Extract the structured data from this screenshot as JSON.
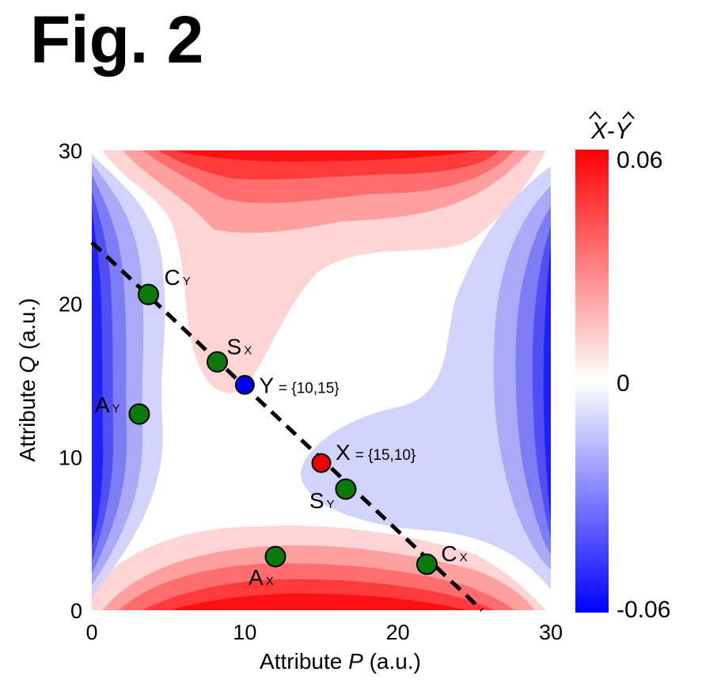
{
  "figure": {
    "title": "Fig. 2"
  },
  "chart_data": {
    "type": "heatmap",
    "description_field": "X̂-Ŷ",
    "xlabel_prefix": "Attribute ",
    "xlabel_var": "P",
    "xlabel_suffix": " (a.u.)",
    "ylabel_prefix": "Attribute ",
    "ylabel_var": "Q",
    "ylabel_suffix": " (a.u.)",
    "xlim": [
      0,
      30
    ],
    "ylim": [
      0,
      30
    ],
    "xticks": [
      "0",
      "10",
      "20",
      "30"
    ],
    "yticks": [
      "0",
      "10",
      "20",
      "30"
    ],
    "colorbar": {
      "title_x": "X",
      "title_dash": "-",
      "title_y": "Y",
      "max_label": "0.06",
      "mid_label": "0",
      "min_label": "-0.06",
      "range": [
        -0.06,
        0.06
      ],
      "colors": [
        "#0000ff",
        "#ffffff",
        "#ff0000"
      ]
    },
    "line": {
      "style": "dashed",
      "x": [
        0,
        25.5
      ],
      "y": [
        24,
        0
      ]
    },
    "points": [
      {
        "name": "C",
        "sub": "Y",
        "x": 3.7,
        "y": 20.6,
        "color": "#0b7a0b"
      },
      {
        "name": "S",
        "sub": "X",
        "x": 8.2,
        "y": 16.2,
        "color": "#0b7a0b"
      },
      {
        "name": "Y",
        "sub": "",
        "x": 10.0,
        "y": 14.7,
        "color": "#0000ee",
        "coord": "= {10,15}"
      },
      {
        "name": "A",
        "sub": "Y",
        "x": 3.1,
        "y": 12.8,
        "color": "#0b7a0b"
      },
      {
        "name": "X",
        "sub": "",
        "x": 15.0,
        "y": 9.6,
        "color": "#ee0000",
        "coord": "= {15,10}"
      },
      {
        "name": "S",
        "sub": "Y",
        "x": 16.6,
        "y": 7.9,
        "color": "#0b7a0b"
      },
      {
        "name": "A",
        "sub": "X",
        "x": 12.0,
        "y": 3.5,
        "color": "#0b7a0b"
      },
      {
        "name": "C",
        "sub": "X",
        "x": 21.9,
        "y": 3.0,
        "color": "#0b7a0b"
      }
    ]
  }
}
